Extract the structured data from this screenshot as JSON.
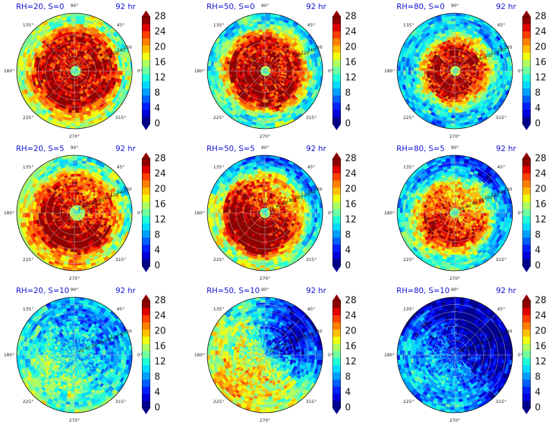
{
  "figure": {
    "colorbar": {
      "min": 0,
      "max": 28,
      "tick_labels": [
        "0",
        "4",
        "8",
        "12",
        "16",
        "20",
        "24",
        "28"
      ],
      "levels": [
        0,
        2,
        4,
        6,
        8,
        10,
        12,
        14,
        16,
        18,
        20,
        22,
        24,
        26,
        28
      ],
      "colors": [
        "#00008f",
        "#0000d8",
        "#0020ff",
        "#0060ff",
        "#00a0ff",
        "#00dcff",
        "#20ffd8",
        "#70ffa0",
        "#b0ff60",
        "#f0ff10",
        "#ffc000",
        "#ff8000",
        "#ff4000",
        "#e00000",
        "#900000"
      ],
      "extend": "both"
    },
    "polar_axis": {
      "angle_labels": [
        "0°",
        "45°",
        "90°",
        "135°",
        "180°",
        "225°",
        "270°",
        "315°"
      ],
      "radial_ticks": [
        "20",
        "40",
        "60",
        "80",
        "100",
        "120",
        "140",
        "160"
      ]
    }
  },
  "chart_data": [
    {
      "type": "heatmap",
      "projection": "polar",
      "title_left": "RH=20, S=0",
      "title_right": "92 hr",
      "eye_radius": 0.1,
      "core_outer": 0.62,
      "core_level": 28,
      "outer_level": 17,
      "asymmetry": 0.1,
      "eye_offset": [
        0.02,
        0.0
      ],
      "radial_labels_from": "100"
    },
    {
      "type": "heatmap",
      "projection": "polar",
      "title_left": "RH=50, S=0",
      "title_right": "92 hr",
      "eye_radius": 0.09,
      "core_outer": 0.58,
      "core_level": 28,
      "outer_level": 13,
      "asymmetry": 0.12,
      "eye_offset": [
        0.01,
        0.0
      ],
      "radial_labels_from": "100"
    },
    {
      "type": "heatmap",
      "projection": "polar",
      "title_left": "RH=80, S=0",
      "title_right": "92 hr",
      "eye_radius": 0.07,
      "core_outer": 0.4,
      "core_level": 28,
      "outer_level": 10,
      "asymmetry": 0.05,
      "eye_offset": [
        0.01,
        0.0
      ],
      "radial_labels_from": "80"
    },
    {
      "type": "heatmap",
      "projection": "polar",
      "title_left": "RH=20, S=5",
      "title_right": "92 hr",
      "eye_radius": 0.12,
      "core_outer": 0.62,
      "core_level": 27,
      "outer_level": 17,
      "asymmetry": 0.35,
      "eye_offset": [
        0.05,
        0.0
      ],
      "radial_labels_from": "20"
    },
    {
      "type": "heatmap",
      "projection": "polar",
      "title_left": "RH=50, S=5",
      "title_right": "92 hr",
      "eye_radius": 0.1,
      "core_outer": 0.6,
      "core_level": 27,
      "outer_level": 13,
      "asymmetry": 0.55,
      "eye_offset": [
        0.0,
        0.0
      ],
      "radial_labels_from": "20"
    },
    {
      "type": "heatmap",
      "projection": "polar",
      "title_left": "RH=80, S=5",
      "title_right": "92 hr",
      "eye_radius": 0.08,
      "core_outer": 0.52,
      "core_level": 24,
      "outer_level": 10,
      "asymmetry": 0.45,
      "eye_offset": [
        0.0,
        0.0
      ],
      "radial_labels_from": "20"
    },
    {
      "type": "heatmap",
      "projection": "polar",
      "title_left": "RH=20, S=10",
      "title_right": "92 hr",
      "eye_radius": 0.0,
      "core_outer": 0.0,
      "core_level": 12,
      "outer_level": 12,
      "asymmetry": 0.3,
      "eye_offset": [
        0.0,
        0.0
      ],
      "radial_labels_from": "20"
    },
    {
      "type": "heatmap",
      "projection": "polar",
      "title_left": "RH=50, S=10",
      "title_right": "92 hr",
      "eye_radius": 0.0,
      "core_outer": 0.0,
      "core_level": 8,
      "outer_level": 16,
      "asymmetry": 0.4,
      "eye_offset": [
        0.0,
        0.0
      ],
      "radial_labels_from": "20"
    },
    {
      "type": "heatmap",
      "projection": "polar",
      "title_left": "RH=80, S=10",
      "title_right": "92 hr",
      "eye_radius": 0.0,
      "core_outer": 0.0,
      "core_level": 4,
      "outer_level": 6,
      "asymmetry": 0.4,
      "eye_offset": [
        0.0,
        0.0
      ],
      "radial_labels_from": "20"
    }
  ]
}
